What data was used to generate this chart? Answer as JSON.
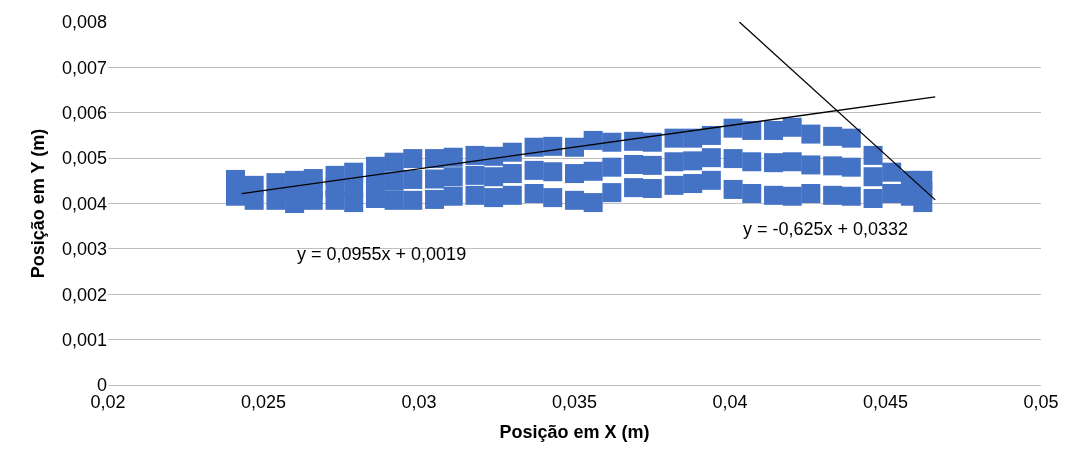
{
  "chart_data": {
    "type": "scatter",
    "xlabel": "Posição em X (m)",
    "ylabel": "Posição em Y (m)",
    "xlim": [
      0.02,
      0.05
    ],
    "xticks": [
      {
        "value": 0.02,
        "label": "0,02"
      },
      {
        "value": 0.025,
        "label": "0,025"
      },
      {
        "value": 0.03,
        "label": "0,03"
      },
      {
        "value": 0.035,
        "label": "0,035"
      },
      {
        "value": 0.04,
        "label": "0,04"
      },
      {
        "value": 0.045,
        "label": "0,045"
      },
      {
        "value": 0.05,
        "label": "0,05"
      }
    ],
    "ylim": [
      0,
      0.008
    ],
    "yticks": [
      0,
      {
        "value": 0.001,
        "label": "0,001"
      },
      {
        "value": 0.002,
        "label": "0,002"
      },
      {
        "value": 0.003,
        "label": "0,003"
      },
      {
        "value": 0.004,
        "label": "0,004"
      },
      {
        "value": 0.005,
        "label": "0,005"
      },
      {
        "value": 0.006,
        "label": "0,006"
      },
      {
        "value": 0.007,
        "label": "0,007"
      },
      {
        "value": 0.008,
        "label": "0,008"
      }
    ],
    "grid": "y",
    "legend": false,
    "series": [
      {
        "marker": "square",
        "color": "#4472c4",
        "x": [
          0.0241,
          0.0241,
          0.0247,
          0.0247,
          0.0254,
          0.0254,
          0.026,
          0.026,
          0.0266,
          0.0266,
          0.0273,
          0.0273,
          0.0279,
          0.0279,
          0.0286,
          0.0286,
          0.0292,
          0.0292,
          0.0298,
          0.0298,
          0.0305,
          0.0305,
          0.0311,
          0.0311,
          0.0318,
          0.0318,
          0.0324,
          0.0324,
          0.033,
          0.033,
          0.0337,
          0.0337,
          0.0343,
          0.0343,
          0.035,
          0.035,
          0.0356,
          0.0356,
          0.0362,
          0.0362,
          0.0369,
          0.0369,
          0.0375,
          0.0375,
          0.0382,
          0.0382,
          0.0388,
          0.0388,
          0.0394,
          0.0394,
          0.0401,
          0.0401,
          0.0407,
          0.0407,
          0.0414,
          0.0414,
          0.042,
          0.042,
          0.0426,
          0.0426,
          0.0433,
          0.0433,
          0.0439,
          0.0439,
          0.0446,
          0.0446,
          0.0452,
          0.0452,
          0.0458,
          0.0458,
          0.0462,
          0.0462,
          0.026,
          0.0266,
          0.0273,
          0.0279,
          0.0286,
          0.0292,
          0.0298,
          0.0305,
          0.0311,
          0.0318,
          0.0324,
          0.033,
          0.0337,
          0.0343,
          0.035,
          0.0356,
          0.0362,
          0.0369,
          0.0375,
          0.0382,
          0.0388,
          0.0394,
          0.0401,
          0.0407,
          0.0414,
          0.042,
          0.0426,
          0.0433,
          0.0439,
          0.0446,
          0.0462
        ],
        "values": [
          0.00453,
          0.00416,
          0.0044,
          0.00407,
          0.00446,
          0.00407,
          0.00451,
          0.004,
          0.00455,
          0.00407,
          0.00462,
          0.00407,
          0.00469,
          0.00402,
          0.00482,
          0.00411,
          0.00491,
          0.00407,
          0.00499,
          0.00407,
          0.00499,
          0.00409,
          0.00502,
          0.00416,
          0.00506,
          0.00418,
          0.00504,
          0.00413,
          0.00513,
          0.00418,
          0.00524,
          0.00422,
          0.00526,
          0.00413,
          0.00524,
          0.00407,
          0.00539,
          0.00402,
          0.00535,
          0.00424,
          0.00537,
          0.00435,
          0.00535,
          0.00433,
          0.00544,
          0.0044,
          0.00544,
          0.00444,
          0.0055,
          0.00451,
          0.00566,
          0.00431,
          0.00561,
          0.00422,
          0.00561,
          0.00418,
          0.00568,
          0.00416,
          0.00553,
          0.00422,
          0.00548,
          0.00418,
          0.00544,
          0.00416,
          0.00506,
          0.00411,
          0.00469,
          0.00422,
          0.00451,
          0.00416,
          0.00451,
          0.00402,
          0.00426,
          0.00431,
          0.00435,
          0.00436,
          0.00447,
          0.00449,
          0.00453,
          0.00454,
          0.00459,
          0.00462,
          0.00459,
          0.00466,
          0.00473,
          0.0047,
          0.00466,
          0.00471,
          0.0048,
          0.00486,
          0.00484,
          0.00492,
          0.00494,
          0.00501,
          0.00499,
          0.00492,
          0.0049,
          0.00492,
          0.00485,
          0.00483,
          0.0048,
          0.00459,
          0.00427
        ]
      },
      {
        "type": "line",
        "marker": "none",
        "line_style": "solid",
        "color": "#000000",
        "x": [
          0.0243,
          0.0466
        ],
        "values": [
          0.00422,
          0.00635
        ]
      },
      {
        "type": "line",
        "marker": "none",
        "line_style": "solid",
        "color": "#000000",
        "x": [
          0.0403,
          0.0466
        ],
        "values": [
          0.008,
          0.00408
        ]
      }
    ],
    "annotations": [
      "y = 0,0955x + 0,0019",
      "y = -0,625x + 0,0332"
    ]
  }
}
